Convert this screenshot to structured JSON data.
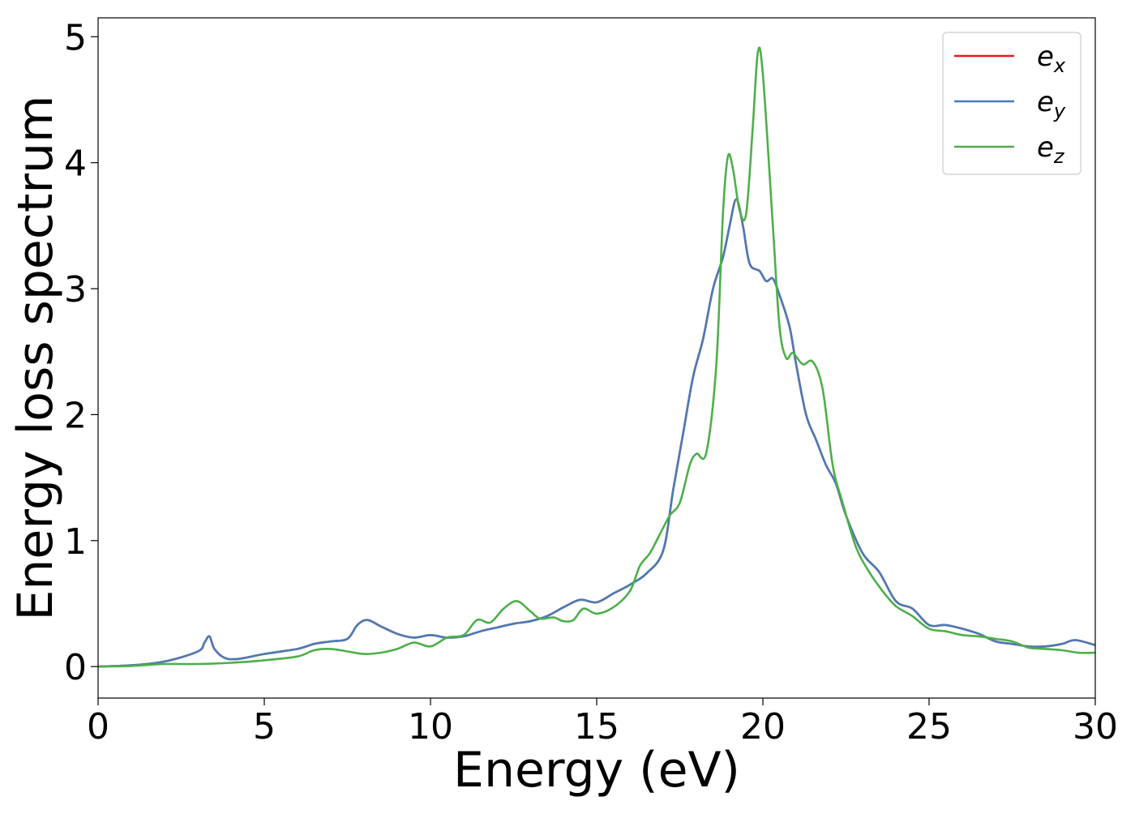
{
  "chart_data": {
    "type": "line",
    "title": "",
    "xlabel": "Energy (eV)",
    "ylabel": "Energy loss spectrum",
    "xlim": [
      0,
      30
    ],
    "ylim": [
      -0.25,
      5.15
    ],
    "xticks": [
      0,
      5,
      10,
      15,
      20,
      25,
      30
    ],
    "yticks": [
      0,
      1,
      2,
      3,
      4,
      5
    ],
    "grid": false,
    "legend_position": "top-right",
    "series": [
      {
        "name": "e",
        "subscript": "x",
        "color": "#e41a1c",
        "points": [
          [
            0,
            0.0
          ],
          [
            1,
            0.01
          ],
          [
            2,
            0.04
          ],
          [
            3,
            0.12
          ],
          [
            3.2,
            0.19
          ],
          [
            3.35,
            0.24
          ],
          [
            3.5,
            0.14
          ],
          [
            3.8,
            0.07
          ],
          [
            4.2,
            0.06
          ],
          [
            5,
            0.1
          ],
          [
            6,
            0.14
          ],
          [
            6.5,
            0.18
          ],
          [
            7,
            0.2
          ],
          [
            7.5,
            0.22
          ],
          [
            7.8,
            0.33
          ],
          [
            8.1,
            0.37
          ],
          [
            8.5,
            0.32
          ],
          [
            9,
            0.26
          ],
          [
            9.5,
            0.23
          ],
          [
            10,
            0.25
          ],
          [
            10.5,
            0.23
          ],
          [
            11,
            0.24
          ],
          [
            11.5,
            0.28
          ],
          [
            12,
            0.31
          ],
          [
            12.5,
            0.34
          ],
          [
            13,
            0.36
          ],
          [
            13.5,
            0.4
          ],
          [
            14,
            0.47
          ],
          [
            14.5,
            0.53
          ],
          [
            15,
            0.51
          ],
          [
            15.5,
            0.58
          ],
          [
            16,
            0.65
          ],
          [
            16.5,
            0.74
          ],
          [
            17,
            0.92
          ],
          [
            17.3,
            1.4
          ],
          [
            17.6,
            1.85
          ],
          [
            17.9,
            2.3
          ],
          [
            18.2,
            2.6
          ],
          [
            18.5,
            3.0
          ],
          [
            18.8,
            3.25
          ],
          [
            19.0,
            3.5
          ],
          [
            19.2,
            3.71
          ],
          [
            19.4,
            3.5
          ],
          [
            19.6,
            3.2
          ],
          [
            19.9,
            3.14
          ],
          [
            20.1,
            3.06
          ],
          [
            20.3,
            3.08
          ],
          [
            20.5,
            2.95
          ],
          [
            20.8,
            2.7
          ],
          [
            21.0,
            2.4
          ],
          [
            21.3,
            2.0
          ],
          [
            21.6,
            1.8
          ],
          [
            21.9,
            1.6
          ],
          [
            22.2,
            1.45
          ],
          [
            22.5,
            1.2
          ],
          [
            23,
            0.9
          ],
          [
            23.5,
            0.75
          ],
          [
            24,
            0.52
          ],
          [
            24.5,
            0.46
          ],
          [
            25,
            0.33
          ],
          [
            25.5,
            0.33
          ],
          [
            26,
            0.3
          ],
          [
            26.5,
            0.26
          ],
          [
            27,
            0.2
          ],
          [
            27.5,
            0.18
          ],
          [
            28,
            0.16
          ],
          [
            28.5,
            0.16
          ],
          [
            29,
            0.18
          ],
          [
            29.4,
            0.21
          ],
          [
            30,
            0.17
          ]
        ]
      },
      {
        "name": "e",
        "subscript": "y",
        "color": "#4a7bb7",
        "points": [
          [
            0,
            0.0
          ],
          [
            1,
            0.01
          ],
          [
            2,
            0.04
          ],
          [
            3,
            0.12
          ],
          [
            3.2,
            0.19
          ],
          [
            3.35,
            0.24
          ],
          [
            3.5,
            0.14
          ],
          [
            3.8,
            0.07
          ],
          [
            4.2,
            0.06
          ],
          [
            5,
            0.1
          ],
          [
            6,
            0.14
          ],
          [
            6.5,
            0.18
          ],
          [
            7,
            0.2
          ],
          [
            7.5,
            0.22
          ],
          [
            7.8,
            0.33
          ],
          [
            8.1,
            0.37
          ],
          [
            8.5,
            0.32
          ],
          [
            9,
            0.26
          ],
          [
            9.5,
            0.23
          ],
          [
            10,
            0.25
          ],
          [
            10.5,
            0.23
          ],
          [
            11,
            0.24
          ],
          [
            11.5,
            0.28
          ],
          [
            12,
            0.31
          ],
          [
            12.5,
            0.34
          ],
          [
            13,
            0.36
          ],
          [
            13.5,
            0.4
          ],
          [
            14,
            0.47
          ],
          [
            14.5,
            0.53
          ],
          [
            15,
            0.51
          ],
          [
            15.5,
            0.58
          ],
          [
            16,
            0.65
          ],
          [
            16.5,
            0.74
          ],
          [
            17,
            0.92
          ],
          [
            17.3,
            1.4
          ],
          [
            17.6,
            1.85
          ],
          [
            17.9,
            2.3
          ],
          [
            18.2,
            2.6
          ],
          [
            18.5,
            3.0
          ],
          [
            18.8,
            3.25
          ],
          [
            19.0,
            3.5
          ],
          [
            19.2,
            3.71
          ],
          [
            19.4,
            3.5
          ],
          [
            19.6,
            3.2
          ],
          [
            19.9,
            3.14
          ],
          [
            20.1,
            3.06
          ],
          [
            20.3,
            3.08
          ],
          [
            20.5,
            2.95
          ],
          [
            20.8,
            2.7
          ],
          [
            21.0,
            2.4
          ],
          [
            21.3,
            2.0
          ],
          [
            21.6,
            1.8
          ],
          [
            21.9,
            1.6
          ],
          [
            22.2,
            1.45
          ],
          [
            22.5,
            1.2
          ],
          [
            23,
            0.9
          ],
          [
            23.5,
            0.75
          ],
          [
            24,
            0.52
          ],
          [
            24.5,
            0.46
          ],
          [
            25,
            0.33
          ],
          [
            25.5,
            0.33
          ],
          [
            26,
            0.3
          ],
          [
            26.5,
            0.26
          ],
          [
            27,
            0.2
          ],
          [
            27.5,
            0.18
          ],
          [
            28,
            0.16
          ],
          [
            28.5,
            0.16
          ],
          [
            29,
            0.18
          ],
          [
            29.4,
            0.21
          ],
          [
            30,
            0.17
          ]
        ]
      },
      {
        "name": "e",
        "subscript": "z",
        "color": "#4daf4a",
        "points": [
          [
            0,
            0.0
          ],
          [
            1,
            0.005
          ],
          [
            2,
            0.02
          ],
          [
            3,
            0.02
          ],
          [
            4,
            0.03
          ],
          [
            5,
            0.05
          ],
          [
            6,
            0.08
          ],
          [
            6.5,
            0.13
          ],
          [
            7,
            0.14
          ],
          [
            7.5,
            0.12
          ],
          [
            8,
            0.1
          ],
          [
            8.5,
            0.11
          ],
          [
            9,
            0.14
          ],
          [
            9.5,
            0.19
          ],
          [
            10,
            0.16
          ],
          [
            10.5,
            0.23
          ],
          [
            11,
            0.25
          ],
          [
            11.4,
            0.37
          ],
          [
            11.8,
            0.35
          ],
          [
            12.2,
            0.46
          ],
          [
            12.6,
            0.52
          ],
          [
            13,
            0.44
          ],
          [
            13.3,
            0.38
          ],
          [
            13.7,
            0.39
          ],
          [
            14,
            0.36
          ],
          [
            14.3,
            0.37
          ],
          [
            14.6,
            0.46
          ],
          [
            15,
            0.42
          ],
          [
            15.5,
            0.47
          ],
          [
            16,
            0.6
          ],
          [
            16.3,
            0.8
          ],
          [
            16.6,
            0.9
          ],
          [
            16.9,
            1.05
          ],
          [
            17.2,
            1.2
          ],
          [
            17.5,
            1.3
          ],
          [
            17.8,
            1.6
          ],
          [
            18.0,
            1.69
          ],
          [
            18.3,
            1.7
          ],
          [
            18.6,
            2.4
          ],
          [
            18.8,
            3.6
          ],
          [
            18.95,
            4.05
          ],
          [
            19.1,
            3.95
          ],
          [
            19.3,
            3.62
          ],
          [
            19.5,
            3.6
          ],
          [
            19.7,
            4.3
          ],
          [
            19.85,
            4.88
          ],
          [
            20.0,
            4.7
          ],
          [
            20.3,
            3.5
          ],
          [
            20.5,
            2.7
          ],
          [
            20.7,
            2.45
          ],
          [
            20.9,
            2.49
          ],
          [
            21.2,
            2.4
          ],
          [
            21.5,
            2.42
          ],
          [
            21.8,
            2.2
          ],
          [
            22.1,
            1.6
          ],
          [
            22.4,
            1.3
          ],
          [
            22.8,
            0.95
          ],
          [
            23.2,
            0.75
          ],
          [
            23.6,
            0.6
          ],
          [
            24,
            0.48
          ],
          [
            24.5,
            0.4
          ],
          [
            25,
            0.3
          ],
          [
            25.5,
            0.28
          ],
          [
            26,
            0.25
          ],
          [
            26.5,
            0.24
          ],
          [
            27,
            0.22
          ],
          [
            27.5,
            0.2
          ],
          [
            28,
            0.15
          ],
          [
            28.5,
            0.14
          ],
          [
            29,
            0.13
          ],
          [
            29.5,
            0.11
          ],
          [
            30,
            0.11
          ]
        ]
      }
    ]
  }
}
